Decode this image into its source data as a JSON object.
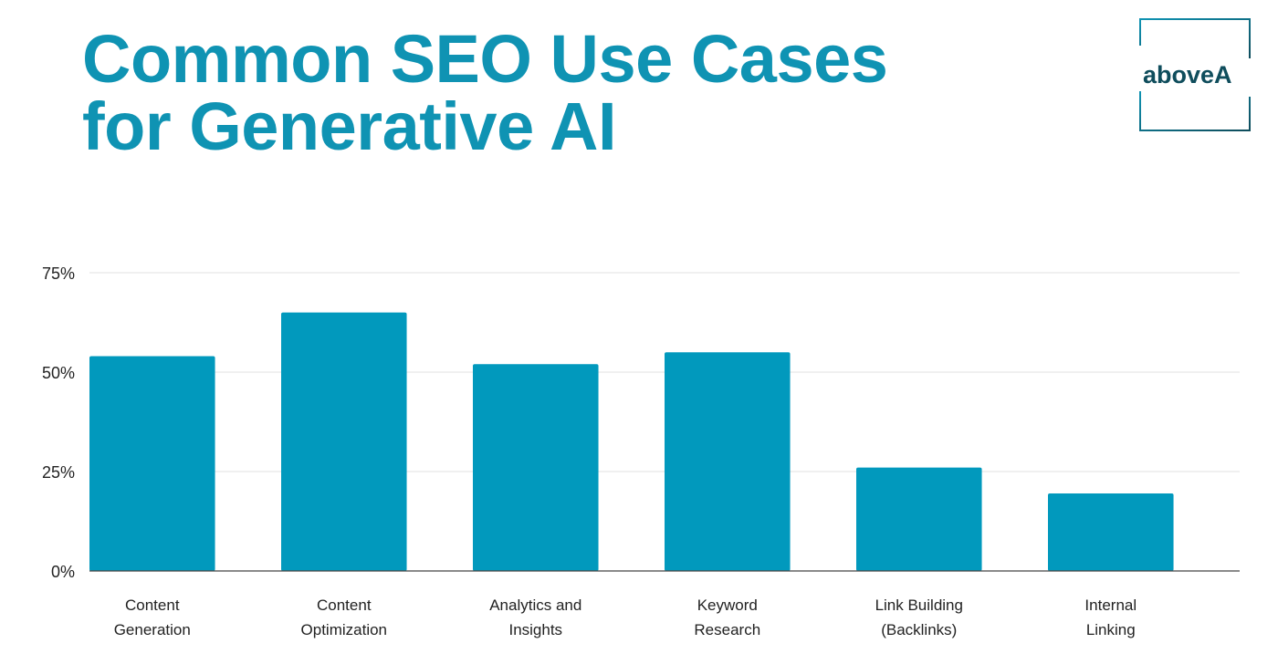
{
  "header": {
    "title_line1": "Common SEO Use Cases",
    "title_line2": "for Generative AI"
  },
  "logo": {
    "text": "aboveA"
  },
  "colors": {
    "title": "#0f93b3",
    "bar": "#0199bd",
    "grid": "#e2e2e2",
    "axis": "#444444",
    "logo": "#0f4d5c"
  },
  "chart_data": {
    "type": "bar",
    "title": "",
    "xlabel": "",
    "ylabel": "",
    "categories": [
      [
        "Content",
        "Generation"
      ],
      [
        "Content",
        "Optimization"
      ],
      [
        "Analytics and",
        "Insights"
      ],
      [
        "Keyword",
        "Research"
      ],
      [
        "Link Building",
        "(Backlinks)"
      ],
      [
        "Internal",
        "Linking"
      ]
    ],
    "values": [
      54,
      65,
      52,
      55,
      26,
      19.5
    ],
    "ylim": [
      0,
      75
    ],
    "yticks": [
      0,
      25,
      50,
      75
    ],
    "ytick_labels": [
      "0%",
      "25%",
      "50%",
      "75%"
    ],
    "grid": true,
    "legend": "none"
  }
}
